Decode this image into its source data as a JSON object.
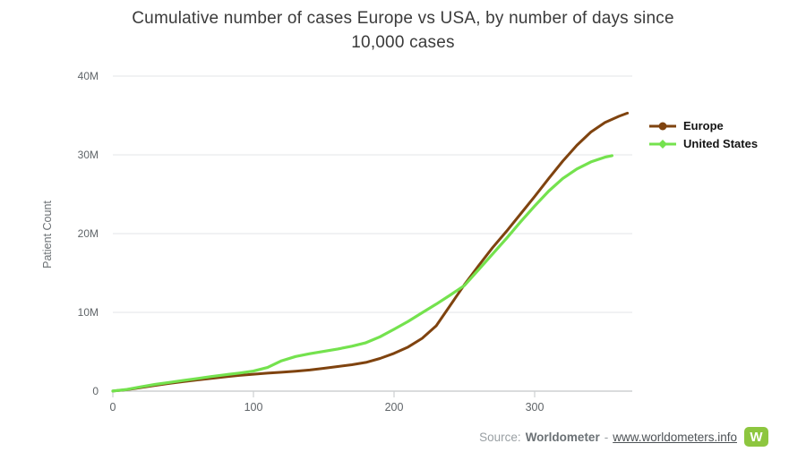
{
  "title": {
    "line1": "Cumulative number of cases Europe vs USA, by number of days since",
    "line2": "10,000 cases"
  },
  "chart_data": {
    "type": "line",
    "title": "Cumulative number of cases Europe vs USA, by number of days since 10,000 cases",
    "xlabel": "",
    "ylabel": "Patient Count",
    "x_unit": "days since 10,000 cases",
    "y_value_unit": "millions of cases",
    "xlim": [
      0,
      369
    ],
    "ylim_millions": [
      0,
      40
    ],
    "grid": "horizontal",
    "legend_position": "right",
    "background": "#ffffff",
    "grid_color": "#e3e5e7",
    "axis_color": "#cdd0d2",
    "tick_label_color": "#5f6468",
    "xticks": [
      {
        "label": "0",
        "value": 0
      },
      {
        "label": "100",
        "value": 100
      },
      {
        "label": "200",
        "value": 200
      },
      {
        "label": "300",
        "value": 300
      }
    ],
    "yticks": [
      {
        "label": "0",
        "value": 0
      },
      {
        "label": "10M",
        "value": 10
      },
      {
        "label": "20M",
        "value": 20
      },
      {
        "label": "30M",
        "value": 30
      },
      {
        "label": "40M",
        "value": 40
      }
    ],
    "series": [
      {
        "name": "Europe",
        "color": "#7f430f",
        "marker": "circle",
        "line_width": 3,
        "points_day_vs_millions": [
          [
            0,
            0.01
          ],
          [
            10,
            0.18
          ],
          [
            20,
            0.45
          ],
          [
            30,
            0.72
          ],
          [
            40,
            0.98
          ],
          [
            50,
            1.2
          ],
          [
            60,
            1.42
          ],
          [
            70,
            1.62
          ],
          [
            80,
            1.82
          ],
          [
            90,
            2.0
          ],
          [
            100,
            2.15
          ],
          [
            110,
            2.28
          ],
          [
            120,
            2.4
          ],
          [
            130,
            2.52
          ],
          [
            140,
            2.68
          ],
          [
            150,
            2.9
          ],
          [
            160,
            3.12
          ],
          [
            170,
            3.35
          ],
          [
            180,
            3.65
          ],
          [
            190,
            4.15
          ],
          [
            200,
            4.8
          ],
          [
            210,
            5.6
          ],
          [
            220,
            6.7
          ],
          [
            230,
            8.3
          ],
          [
            240,
            10.9
          ],
          [
            250,
            13.5
          ],
          [
            260,
            15.9
          ],
          [
            270,
            18.2
          ],
          [
            280,
            20.3
          ],
          [
            290,
            22.5
          ],
          [
            300,
            24.7
          ],
          [
            310,
            27.0
          ],
          [
            320,
            29.2
          ],
          [
            330,
            31.2
          ],
          [
            340,
            32.9
          ],
          [
            350,
            34.1
          ],
          [
            360,
            34.9
          ],
          [
            366,
            35.3
          ]
        ]
      },
      {
        "name": "United States",
        "color": "#74e24e",
        "marker": "diamond",
        "line_width": 3.2,
        "points_day_vs_millions": [
          [
            0,
            0.01
          ],
          [
            10,
            0.22
          ],
          [
            20,
            0.55
          ],
          [
            30,
            0.85
          ],
          [
            40,
            1.1
          ],
          [
            50,
            1.35
          ],
          [
            60,
            1.6
          ],
          [
            70,
            1.85
          ],
          [
            80,
            2.08
          ],
          [
            90,
            2.3
          ],
          [
            100,
            2.55
          ],
          [
            110,
            3.0
          ],
          [
            120,
            3.85
          ],
          [
            130,
            4.4
          ],
          [
            140,
            4.75
          ],
          [
            150,
            5.05
          ],
          [
            160,
            5.35
          ],
          [
            170,
            5.7
          ],
          [
            180,
            6.15
          ],
          [
            190,
            6.9
          ],
          [
            200,
            7.85
          ],
          [
            210,
            8.85
          ],
          [
            220,
            9.95
          ],
          [
            230,
            11.05
          ],
          [
            240,
            12.2
          ],
          [
            250,
            13.4
          ],
          [
            260,
            15.4
          ],
          [
            270,
            17.4
          ],
          [
            280,
            19.4
          ],
          [
            290,
            21.5
          ],
          [
            300,
            23.5
          ],
          [
            310,
            25.4
          ],
          [
            320,
            27.0
          ],
          [
            330,
            28.2
          ],
          [
            340,
            29.1
          ],
          [
            350,
            29.7
          ],
          [
            355,
            29.9
          ]
        ]
      }
    ]
  },
  "source": {
    "prefix": "Source:",
    "name": "Worldometer",
    "separator": "-",
    "link": "www.worldometers.info",
    "logo_letter": "W",
    "logo_color": "#8dc63f"
  }
}
